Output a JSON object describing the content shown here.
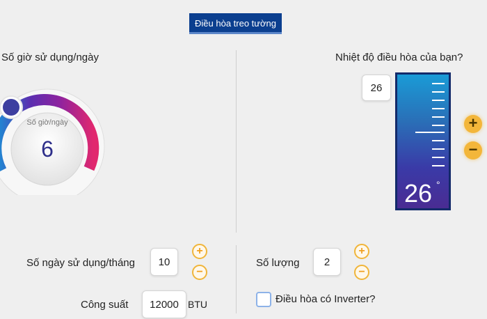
{
  "tab": {
    "label": "Điều hòa treo tường"
  },
  "hours": {
    "title": "Số giờ sử dụng/ngày",
    "dial_label": "Số giờ/ngày",
    "value": "6"
  },
  "temperature": {
    "title": "Nhiệt độ điều hòa của bạn?",
    "value": "26",
    "display": "26",
    "degree_symbol": "°",
    "plus": "+",
    "minus": "−"
  },
  "days": {
    "label": "Số ngày sử dụng/tháng",
    "value": "10",
    "plus": "+",
    "minus": "−"
  },
  "quantity": {
    "label": "Số lượng",
    "value": "2",
    "plus": "+",
    "minus": "−"
  },
  "power": {
    "label": "Công suất",
    "value": "12000",
    "unit": "BTU"
  },
  "inverter": {
    "label": "Điều hòa có Inverter?"
  },
  "colors": {
    "tab": "#0b3f8f",
    "accent": "#f3b63a",
    "dial_start": "#1b8fd6",
    "dial_mid": "#7a2aa7",
    "dial_end": "#e1286e"
  }
}
